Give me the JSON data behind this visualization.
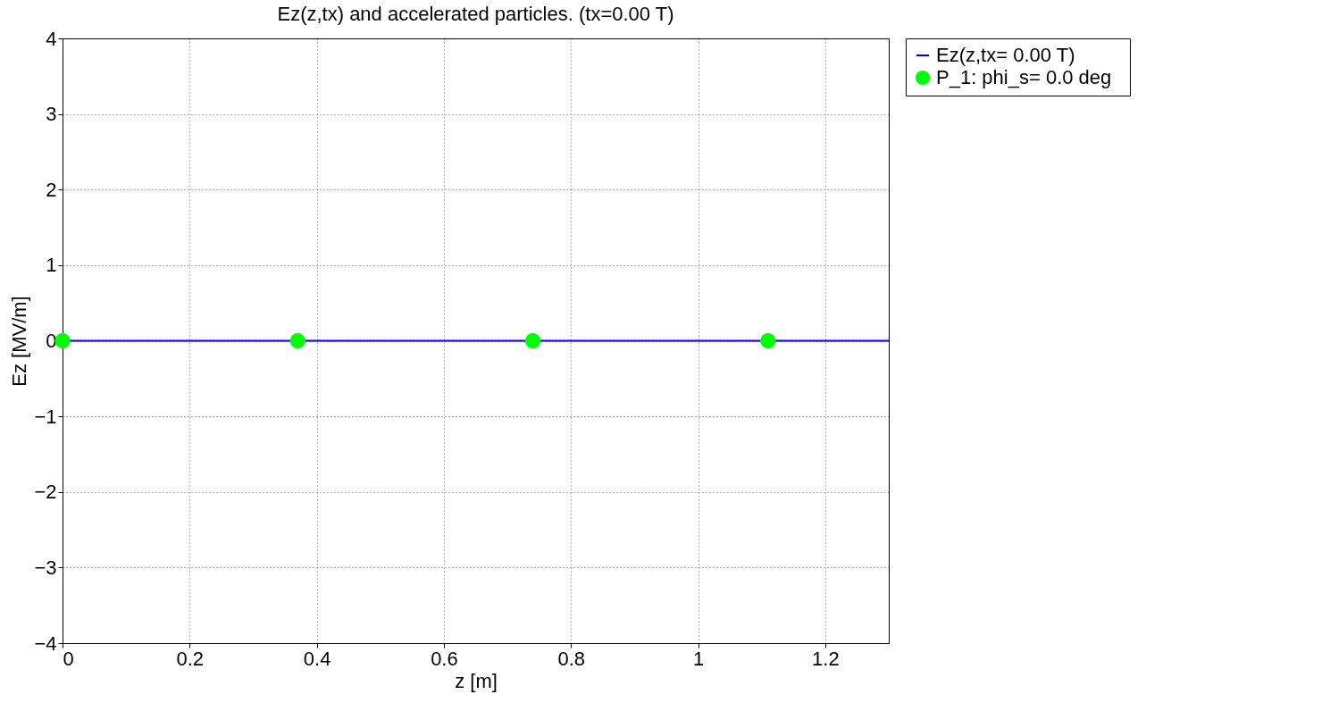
{
  "chart_data": {
    "type": "line",
    "title": "Ez(z,tx) and accelerated particles.  (tx=0.00 T)",
    "xlabel": "z [m]",
    "ylabel": "Ez [MV/m]",
    "xlim": [
      0,
      1.3
    ],
    "xticks": [
      0,
      0.2,
      0.4,
      0.6,
      0.8,
      1,
      1.2
    ],
    "ylim": [
      -4,
      4
    ],
    "yticks": [
      -4,
      -3,
      -2,
      -1,
      0,
      1,
      2,
      3,
      4
    ],
    "grid": true,
    "legend": "top right",
    "series": [
      {
        "name": "Ez(z,tx=  0.00 T)",
        "color": "#0000ff",
        "x": [
          0,
          1.3
        ],
        "values": [
          0,
          0
        ],
        "marker": "none"
      },
      {
        "name": "P_1: phi_s=   0.0 deg",
        "type": "scatter",
        "color": "#00ff00",
        "x": [
          0,
          0.37,
          0.74,
          1.11
        ],
        "values": [
          0,
          0,
          0,
          0
        ],
        "marker": "circle"
      }
    ]
  }
}
